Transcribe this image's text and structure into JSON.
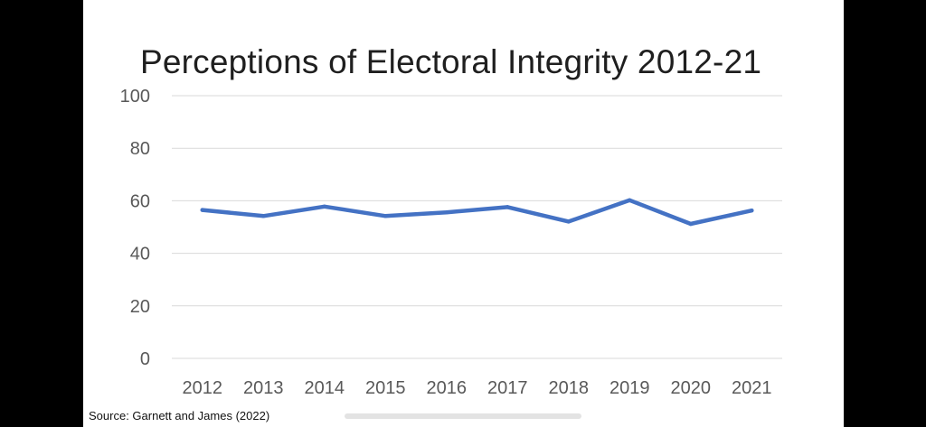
{
  "chart_data": {
    "type": "line",
    "title": "Perceptions of Electoral Integrity 2012-21",
    "xlabel": "",
    "ylabel": "",
    "ylim": [
      0,
      100
    ],
    "yticks": [
      "0",
      "20",
      "40",
      "60",
      "80",
      "100"
    ],
    "categories": [
      "2012",
      "2013",
      "2014",
      "2015",
      "2016",
      "2017",
      "2018",
      "2019",
      "2020",
      "2021"
    ],
    "series": [
      {
        "name": "Electoral Integrity",
        "values": [
          56.5,
          54.2,
          57.8,
          54.2,
          55.6,
          57.6,
          52.1,
          60.2,
          51.2,
          56.3
        ],
        "color": "#4472c4"
      }
    ],
    "grid": true,
    "legend": "none"
  },
  "source": "Source: Garnett and James (2022)",
  "colors": {
    "line": "#4472c4",
    "grid": "#d9d9d9",
    "axis_text": "#595959"
  }
}
